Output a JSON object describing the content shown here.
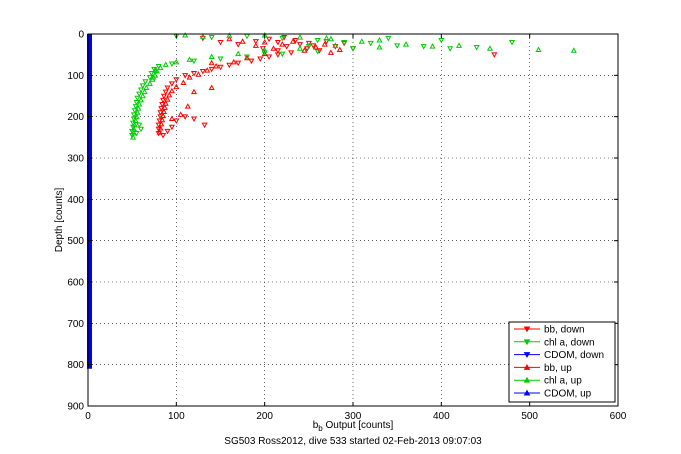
{
  "chart_data": {
    "type": "scatter",
    "xlabel_main": "b",
    "xlabel_sub": "b",
    "xlabel_rest": " Output [counts]",
    "ylabel": "Depth [counts]",
    "caption": "SG503 Ross2012, dive 533 started 02-Feb-2013 09:07:03",
    "xlim": [
      0,
      600
    ],
    "ylim": [
      900,
      0
    ],
    "y_reversed": true,
    "grid": "dotted",
    "legend_position": "bottom-right",
    "xticks": [
      "0",
      "100",
      "200",
      "300",
      "400",
      "500",
      "600"
    ],
    "yticks": [
      "0",
      "100",
      "200",
      "300",
      "400",
      "500",
      "600",
      "700",
      "800",
      "900"
    ],
    "series": [
      {
        "name": "bb, down",
        "color": "#ff0000",
        "marker": "triangle-down",
        "points": [
          [
            130,
            10
          ],
          [
            150,
            20
          ],
          [
            170,
            25
          ],
          [
            190,
            18
          ],
          [
            205,
            12
          ],
          [
            215,
            20
          ],
          [
            225,
            30
          ],
          [
            235,
            15
          ],
          [
            240,
            25
          ],
          [
            248,
            35
          ],
          [
            255,
            28
          ],
          [
            262,
            40
          ],
          [
            270,
            18
          ],
          [
            280,
            30
          ],
          [
            290,
            22
          ],
          [
            300,
            35
          ],
          [
            230,
            45
          ],
          [
            215,
            50
          ],
          [
            205,
            55
          ],
          [
            195,
            60
          ],
          [
            185,
            65
          ],
          [
            170,
            70
          ],
          [
            160,
            75
          ],
          [
            150,
            80
          ],
          [
            140,
            85
          ],
          [
            130,
            90
          ],
          [
            120,
            95
          ],
          [
            110,
            100
          ],
          [
            100,
            110
          ],
          [
            95,
            120
          ],
          [
            90,
            130
          ],
          [
            88,
            140
          ],
          [
            86,
            150
          ],
          [
            85,
            160
          ],
          [
            84,
            170
          ],
          [
            83,
            180
          ],
          [
            82,
            190
          ],
          [
            82,
            200
          ],
          [
            81,
            210
          ],
          [
            80,
            220
          ],
          [
            80,
            230
          ],
          [
            80,
            240
          ],
          [
            85,
            245
          ],
          [
            90,
            235
          ],
          [
            95,
            225
          ],
          [
            100,
            210
          ],
          [
            110,
            200
          ],
          [
            120,
            205
          ],
          [
            132,
            220
          ],
          [
            460,
            50
          ],
          [
            215,
            40
          ],
          [
            250,
            22
          ],
          [
            222,
            8
          ],
          [
            198,
            35
          ]
        ]
      },
      {
        "name": "chl a, down",
        "color": "#00cc00",
        "marker": "triangle-down",
        "points": [
          [
            100,
            5
          ],
          [
            140,
            8
          ],
          [
            180,
            5
          ],
          [
            220,
            10
          ],
          [
            260,
            15
          ],
          [
            290,
            20
          ],
          [
            320,
            22
          ],
          [
            350,
            28
          ],
          [
            380,
            30
          ],
          [
            410,
            35
          ],
          [
            440,
            32
          ],
          [
            480,
            20
          ],
          [
            300,
            35
          ],
          [
            260,
            42
          ],
          [
            220,
            48
          ],
          [
            180,
            55
          ],
          [
            150,
            60
          ],
          [
            120,
            65
          ],
          [
            95,
            72
          ],
          [
            80,
            78
          ],
          [
            75,
            85
          ],
          [
            72,
            95
          ],
          [
            70,
            105
          ],
          [
            65,
            115
          ],
          [
            62,
            125
          ],
          [
            60,
            135
          ],
          [
            58,
            145
          ],
          [
            56,
            155
          ],
          [
            55,
            165
          ],
          [
            54,
            175
          ],
          [
            53,
            185
          ],
          [
            52,
            195
          ],
          [
            52,
            205
          ],
          [
            51,
            215
          ],
          [
            51,
            225
          ],
          [
            50,
            235
          ],
          [
            50,
            245
          ],
          [
            55,
            240
          ],
          [
            60,
            230
          ],
          [
            58,
            220
          ],
          [
            200,
            45
          ],
          [
            340,
            10
          ],
          [
            400,
            15
          ],
          [
            250,
            30
          ]
        ]
      },
      {
        "name": "CDOM, down",
        "color": "#0000ff",
        "marker": "triangle-down",
        "points": []
      },
      {
        "name": "bb, up",
        "color": "#ff0000",
        "marker": "triangle-up",
        "points": [
          [
            160,
            12
          ],
          [
            175,
            18
          ],
          [
            190,
            28
          ],
          [
            200,
            20
          ],
          [
            210,
            35
          ],
          [
            220,
            25
          ],
          [
            232,
            18
          ],
          [
            245,
            40
          ],
          [
            258,
            32
          ],
          [
            268,
            25
          ],
          [
            275,
            45
          ],
          [
            285,
            38
          ],
          [
            200,
            48
          ],
          [
            180,
            58
          ],
          [
            165,
            68
          ],
          [
            145,
            78
          ],
          [
            135,
            88
          ],
          [
            125,
            98
          ],
          [
            115,
            105
          ],
          [
            108,
            118
          ],
          [
            100,
            128
          ],
          [
            95,
            138
          ],
          [
            92,
            148
          ],
          [
            90,
            158
          ],
          [
            88,
            168
          ],
          [
            87,
            178
          ],
          [
            86,
            188
          ],
          [
            85,
            198
          ],
          [
            84,
            208
          ],
          [
            83,
            218
          ],
          [
            82,
            228
          ],
          [
            81,
            238
          ],
          [
            95,
            205
          ],
          [
            105,
            195
          ],
          [
            113,
            175
          ],
          [
            120,
            140
          ],
          [
            140,
            130
          ],
          [
            140,
            70
          ]
        ]
      },
      {
        "name": "chl a, up",
        "color": "#00cc00",
        "marker": "triangle-up",
        "points": [
          [
            110,
            3
          ],
          [
            130,
            6
          ],
          [
            160,
            4
          ],
          [
            200,
            3
          ],
          [
            240,
            8
          ],
          [
            275,
            12
          ],
          [
            310,
            18
          ],
          [
            330,
            15
          ],
          [
            360,
            25
          ],
          [
            390,
            30
          ],
          [
            420,
            28
          ],
          [
            455,
            35
          ],
          [
            510,
            38
          ],
          [
            550,
            40
          ],
          [
            280,
            28
          ],
          [
            240,
            35
          ],
          [
            200,
            40
          ],
          [
            170,
            48
          ],
          [
            140,
            55
          ],
          [
            115,
            62
          ],
          [
            100,
            68
          ],
          [
            88,
            74
          ],
          [
            82,
            82
          ],
          [
            78,
            90
          ],
          [
            76,
            100
          ],
          [
            73,
            110
          ],
          [
            70,
            120
          ],
          [
            66,
            130
          ],
          [
            64,
            140
          ],
          [
            62,
            150
          ],
          [
            60,
            160
          ],
          [
            58,
            170
          ],
          [
            57,
            180
          ],
          [
            56,
            190
          ],
          [
            55,
            200
          ],
          [
            54,
            210
          ],
          [
            53,
            220
          ],
          [
            52,
            230
          ],
          [
            52,
            240
          ],
          [
            51,
            250
          ],
          [
            74,
            105
          ],
          [
            76,
            88
          ],
          [
            270,
            10
          ],
          [
            330,
            32
          ]
        ]
      },
      {
        "name": "CDOM, up",
        "color": "#0000ff",
        "marker": "triangle-up",
        "points": [
          [
            0,
            0
          ],
          [
            0,
            810
          ]
        ]
      }
    ]
  }
}
